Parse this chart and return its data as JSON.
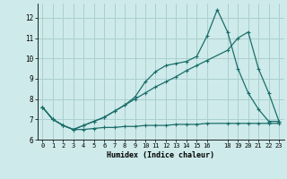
{
  "title": "",
  "xlabel": "Humidex (Indice chaleur)",
  "x_ticks": [
    0,
    1,
    2,
    3,
    4,
    5,
    6,
    7,
    8,
    9,
    10,
    11,
    12,
    13,
    14,
    15,
    16,
    18,
    19,
    20,
    21,
    22,
    23
  ],
  "xlim": [
    -0.5,
    23.5
  ],
  "ylim": [
    6.0,
    12.7
  ],
  "y_ticks": [
    6,
    7,
    8,
    9,
    10,
    11,
    12
  ],
  "bg_color": "#ceeaea",
  "grid_color": "#aacfcf",
  "line_color": "#1a6e6a",
  "series1": {
    "x": [
      0,
      1,
      2,
      3,
      4,
      5,
      6,
      7,
      8,
      9,
      10,
      11,
      12,
      13,
      14,
      15,
      16,
      18,
      19,
      20,
      21,
      22,
      23
    ],
    "y": [
      7.6,
      7.0,
      6.7,
      6.5,
      6.5,
      6.55,
      6.6,
      6.6,
      6.65,
      6.65,
      6.7,
      6.7,
      6.7,
      6.75,
      6.75,
      6.75,
      6.8,
      6.8,
      6.8,
      6.8,
      6.8,
      6.8,
      6.8
    ]
  },
  "series2": {
    "x": [
      0,
      1,
      2,
      3,
      4,
      5,
      6,
      7,
      8,
      9,
      10,
      11,
      12,
      13,
      14,
      15,
      16,
      18,
      19,
      20,
      21,
      22,
      23
    ],
    "y": [
      7.6,
      7.0,
      6.7,
      6.5,
      6.7,
      6.9,
      7.1,
      7.4,
      7.7,
      8.0,
      8.3,
      8.6,
      8.85,
      9.1,
      9.4,
      9.65,
      9.9,
      10.4,
      11.0,
      11.3,
      9.5,
      8.3,
      6.9
    ]
  },
  "series3": {
    "x": [
      0,
      1,
      2,
      3,
      4,
      5,
      6,
      7,
      8,
      9,
      10,
      11,
      12,
      13,
      14,
      15,
      16,
      17,
      18,
      19,
      20,
      21,
      22,
      23
    ],
    "y": [
      7.6,
      7.0,
      6.7,
      6.5,
      6.7,
      6.9,
      7.1,
      7.4,
      7.7,
      8.1,
      8.85,
      9.35,
      9.65,
      9.75,
      9.85,
      10.1,
      11.1,
      12.4,
      11.3,
      9.5,
      8.3,
      7.5,
      6.9,
      6.9
    ]
  }
}
